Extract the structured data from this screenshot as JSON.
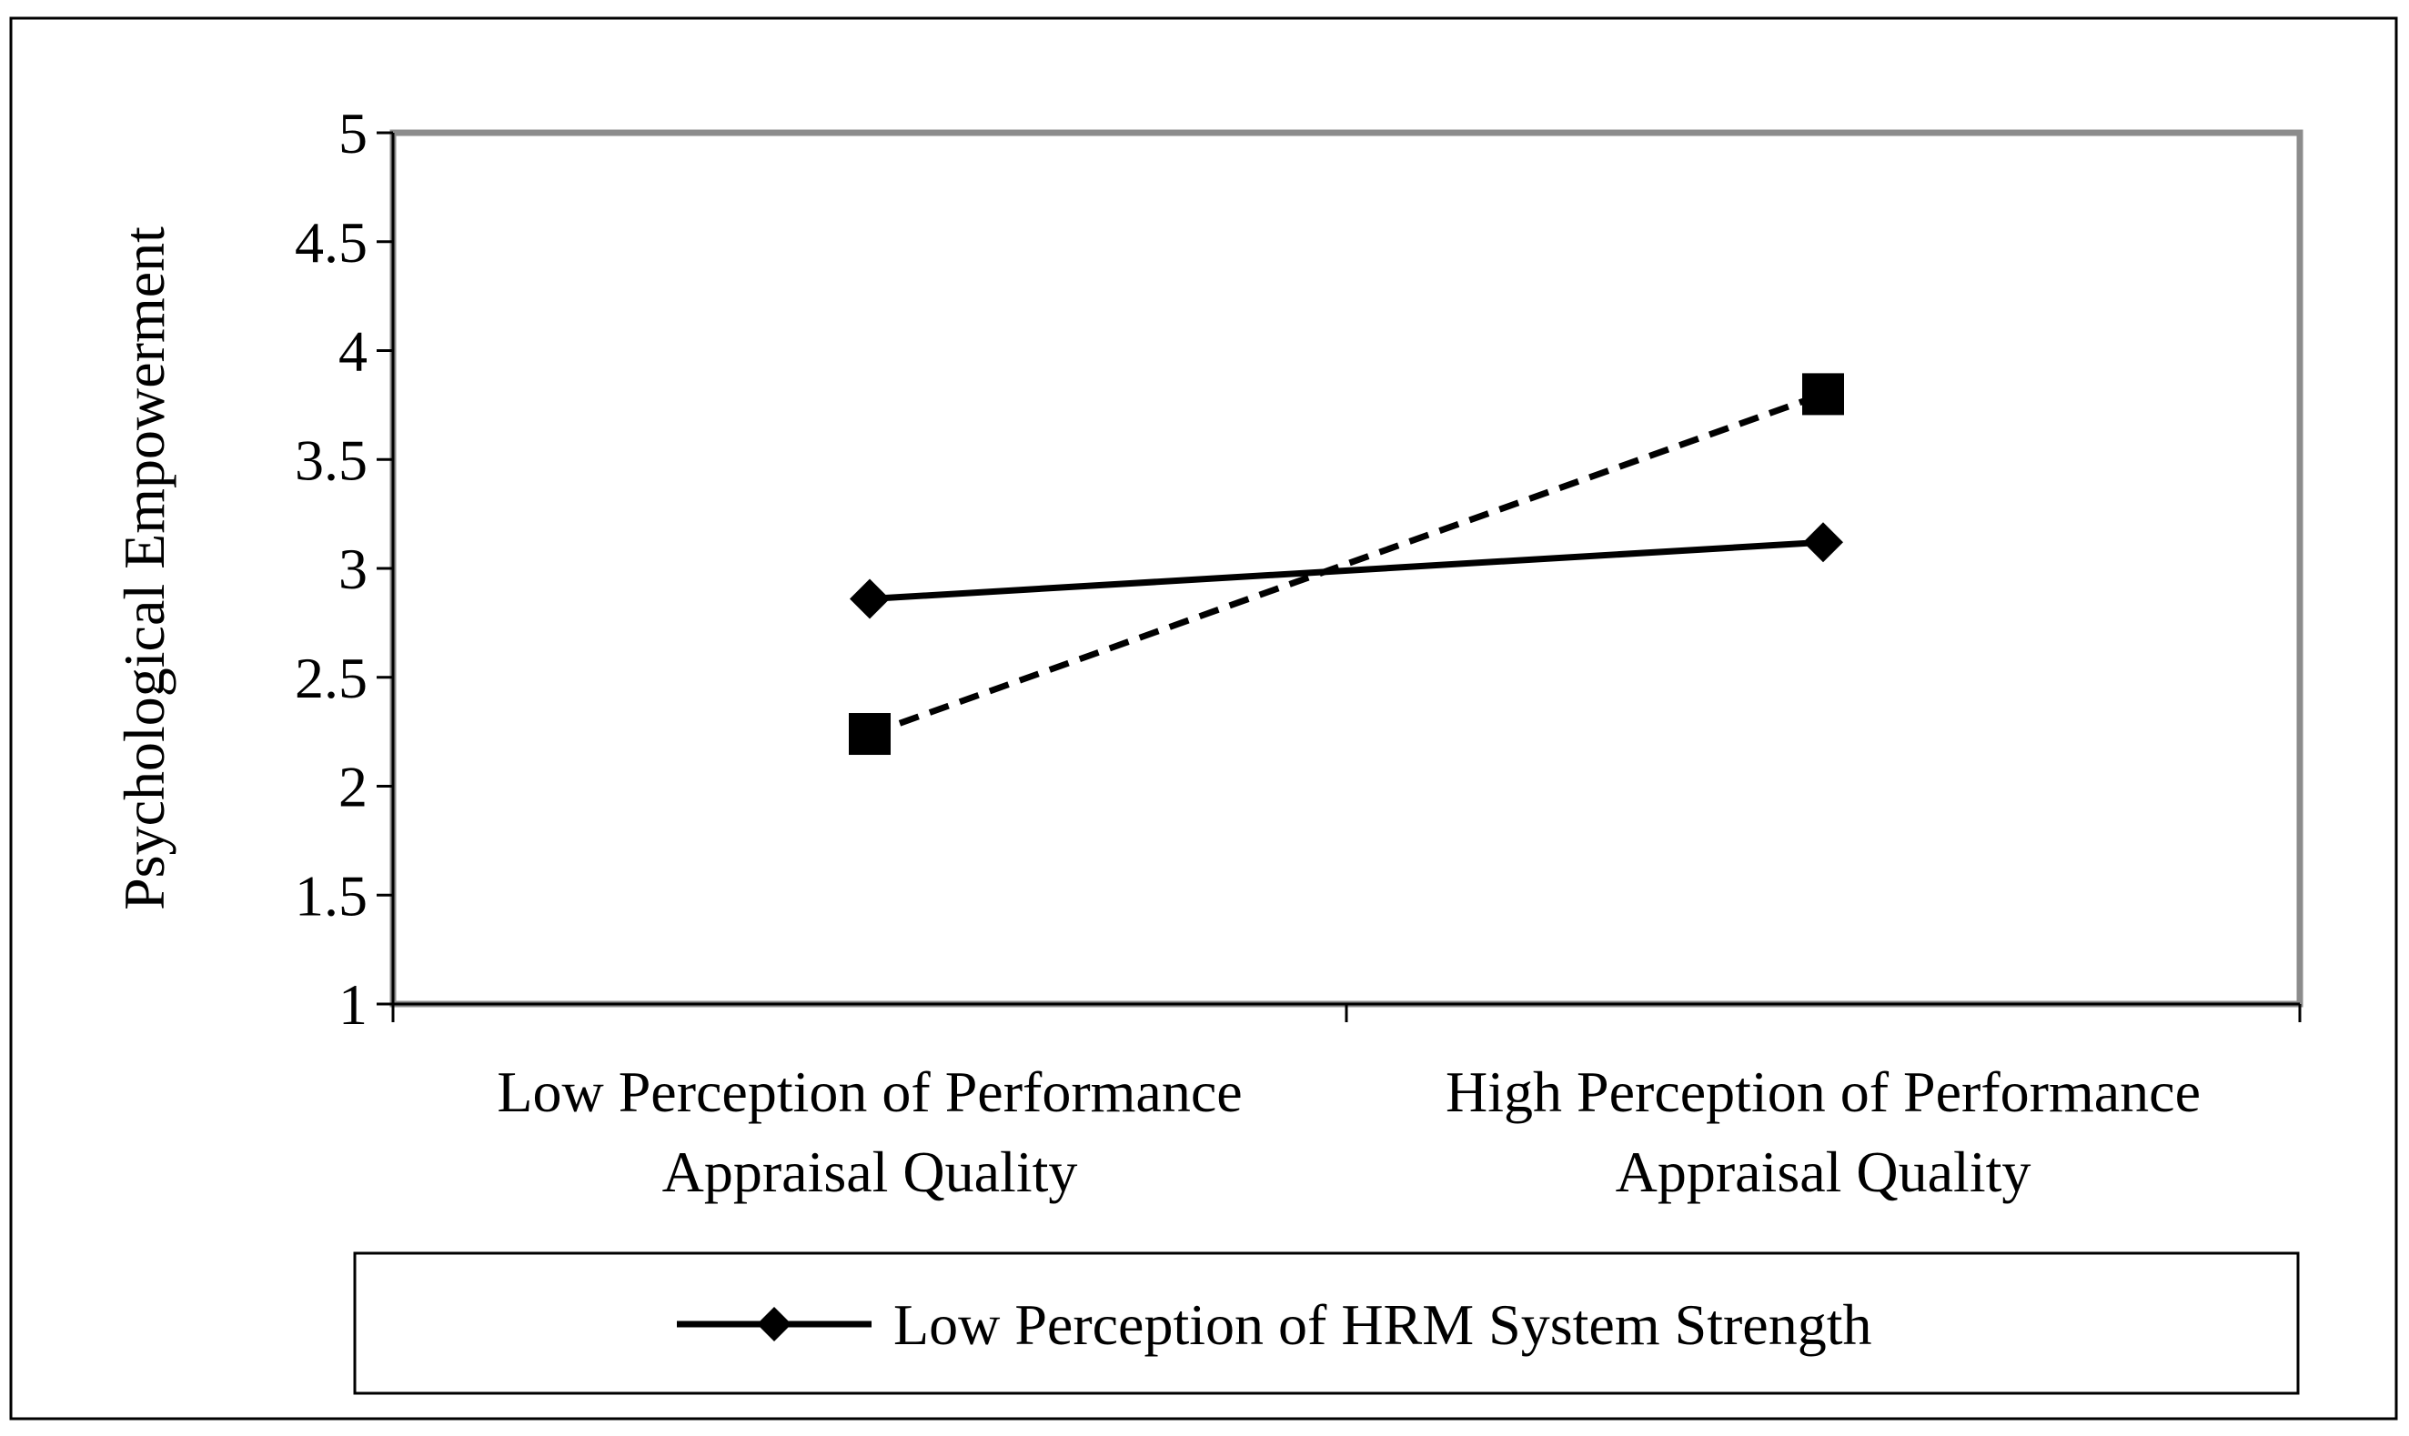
{
  "chart_data": {
    "type": "line",
    "title": "",
    "ylabel": "Psychological Empowerment",
    "xlabel": "",
    "ylim": [
      1,
      5
    ],
    "yticks": [
      "1",
      "1.5",
      "2",
      "2.5",
      "3",
      "3.5",
      "4",
      "4.5",
      "5"
    ],
    "categories": [
      [
        "Low Perception of Performance",
        "Appraisal Quality"
      ],
      [
        "High Perception of Performance",
        "Appraisal Quality"
      ]
    ],
    "series": [
      {
        "name": "Low Perception of HRM System Strength",
        "values": [
          2.86,
          3.12
        ],
        "marker": "diamond",
        "dash": "solid",
        "color": "#000000"
      },
      {
        "values": [
          2.24,
          3.8
        ],
        "marker": "square",
        "dash": "dashed",
        "color": "#000000"
      }
    ],
    "grid": false,
    "legend_position": "bottom",
    "plot_border_color": "#8c8c8c"
  }
}
